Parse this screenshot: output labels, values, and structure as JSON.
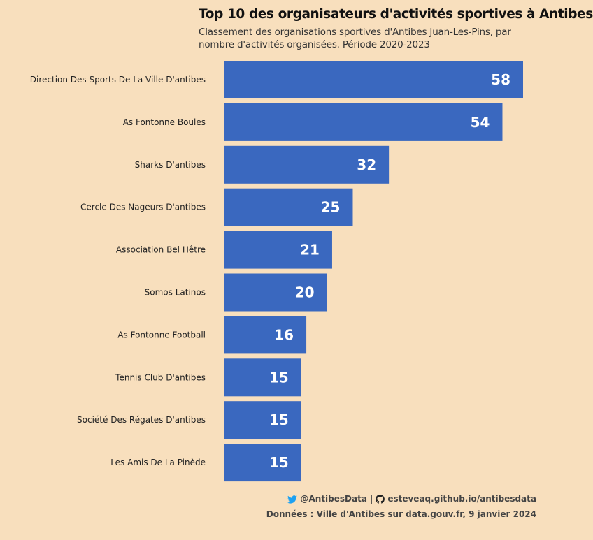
{
  "chart_data": {
    "type": "bar",
    "orientation": "horizontal",
    "title": "Top 10 des organisateurs d'activités sportives à Antibes",
    "subtitle": "Classement des organisations sportives d'Antibes Juan-Les-Pins, par nombre d'activités organisées. Période 2020-2023",
    "categories": [
      "Direction Des Sports De La Ville D'antibes",
      "As Fontonne Boules",
      "Sharks D'antibes",
      "Cercle Des Nageurs D'antibes",
      "Association Bel Hêtre",
      "Somos Latinos",
      "As Fontonne Football",
      "Tennis Club D'antibes",
      "Société Des Régates D'antibes",
      "Les Amis De La Pinède"
    ],
    "values": [
      58,
      54,
      32,
      25,
      21,
      20,
      16,
      15,
      15,
      15
    ],
    "xlim": [
      0,
      58
    ],
    "bar_color": "#3a68bf",
    "background_color": "#f8dfbd",
    "grid": false,
    "legend": "none"
  },
  "footer": {
    "twitter_icon": "twitter-icon",
    "github_icon": "github-icon",
    "twitter_handle": "@AntibesData",
    "separator": "|",
    "website": "esteveaq.github.io/antibesdata",
    "source": "Données : Ville d'Antibes sur data.gouv.fr, 9 janvier 2024"
  }
}
